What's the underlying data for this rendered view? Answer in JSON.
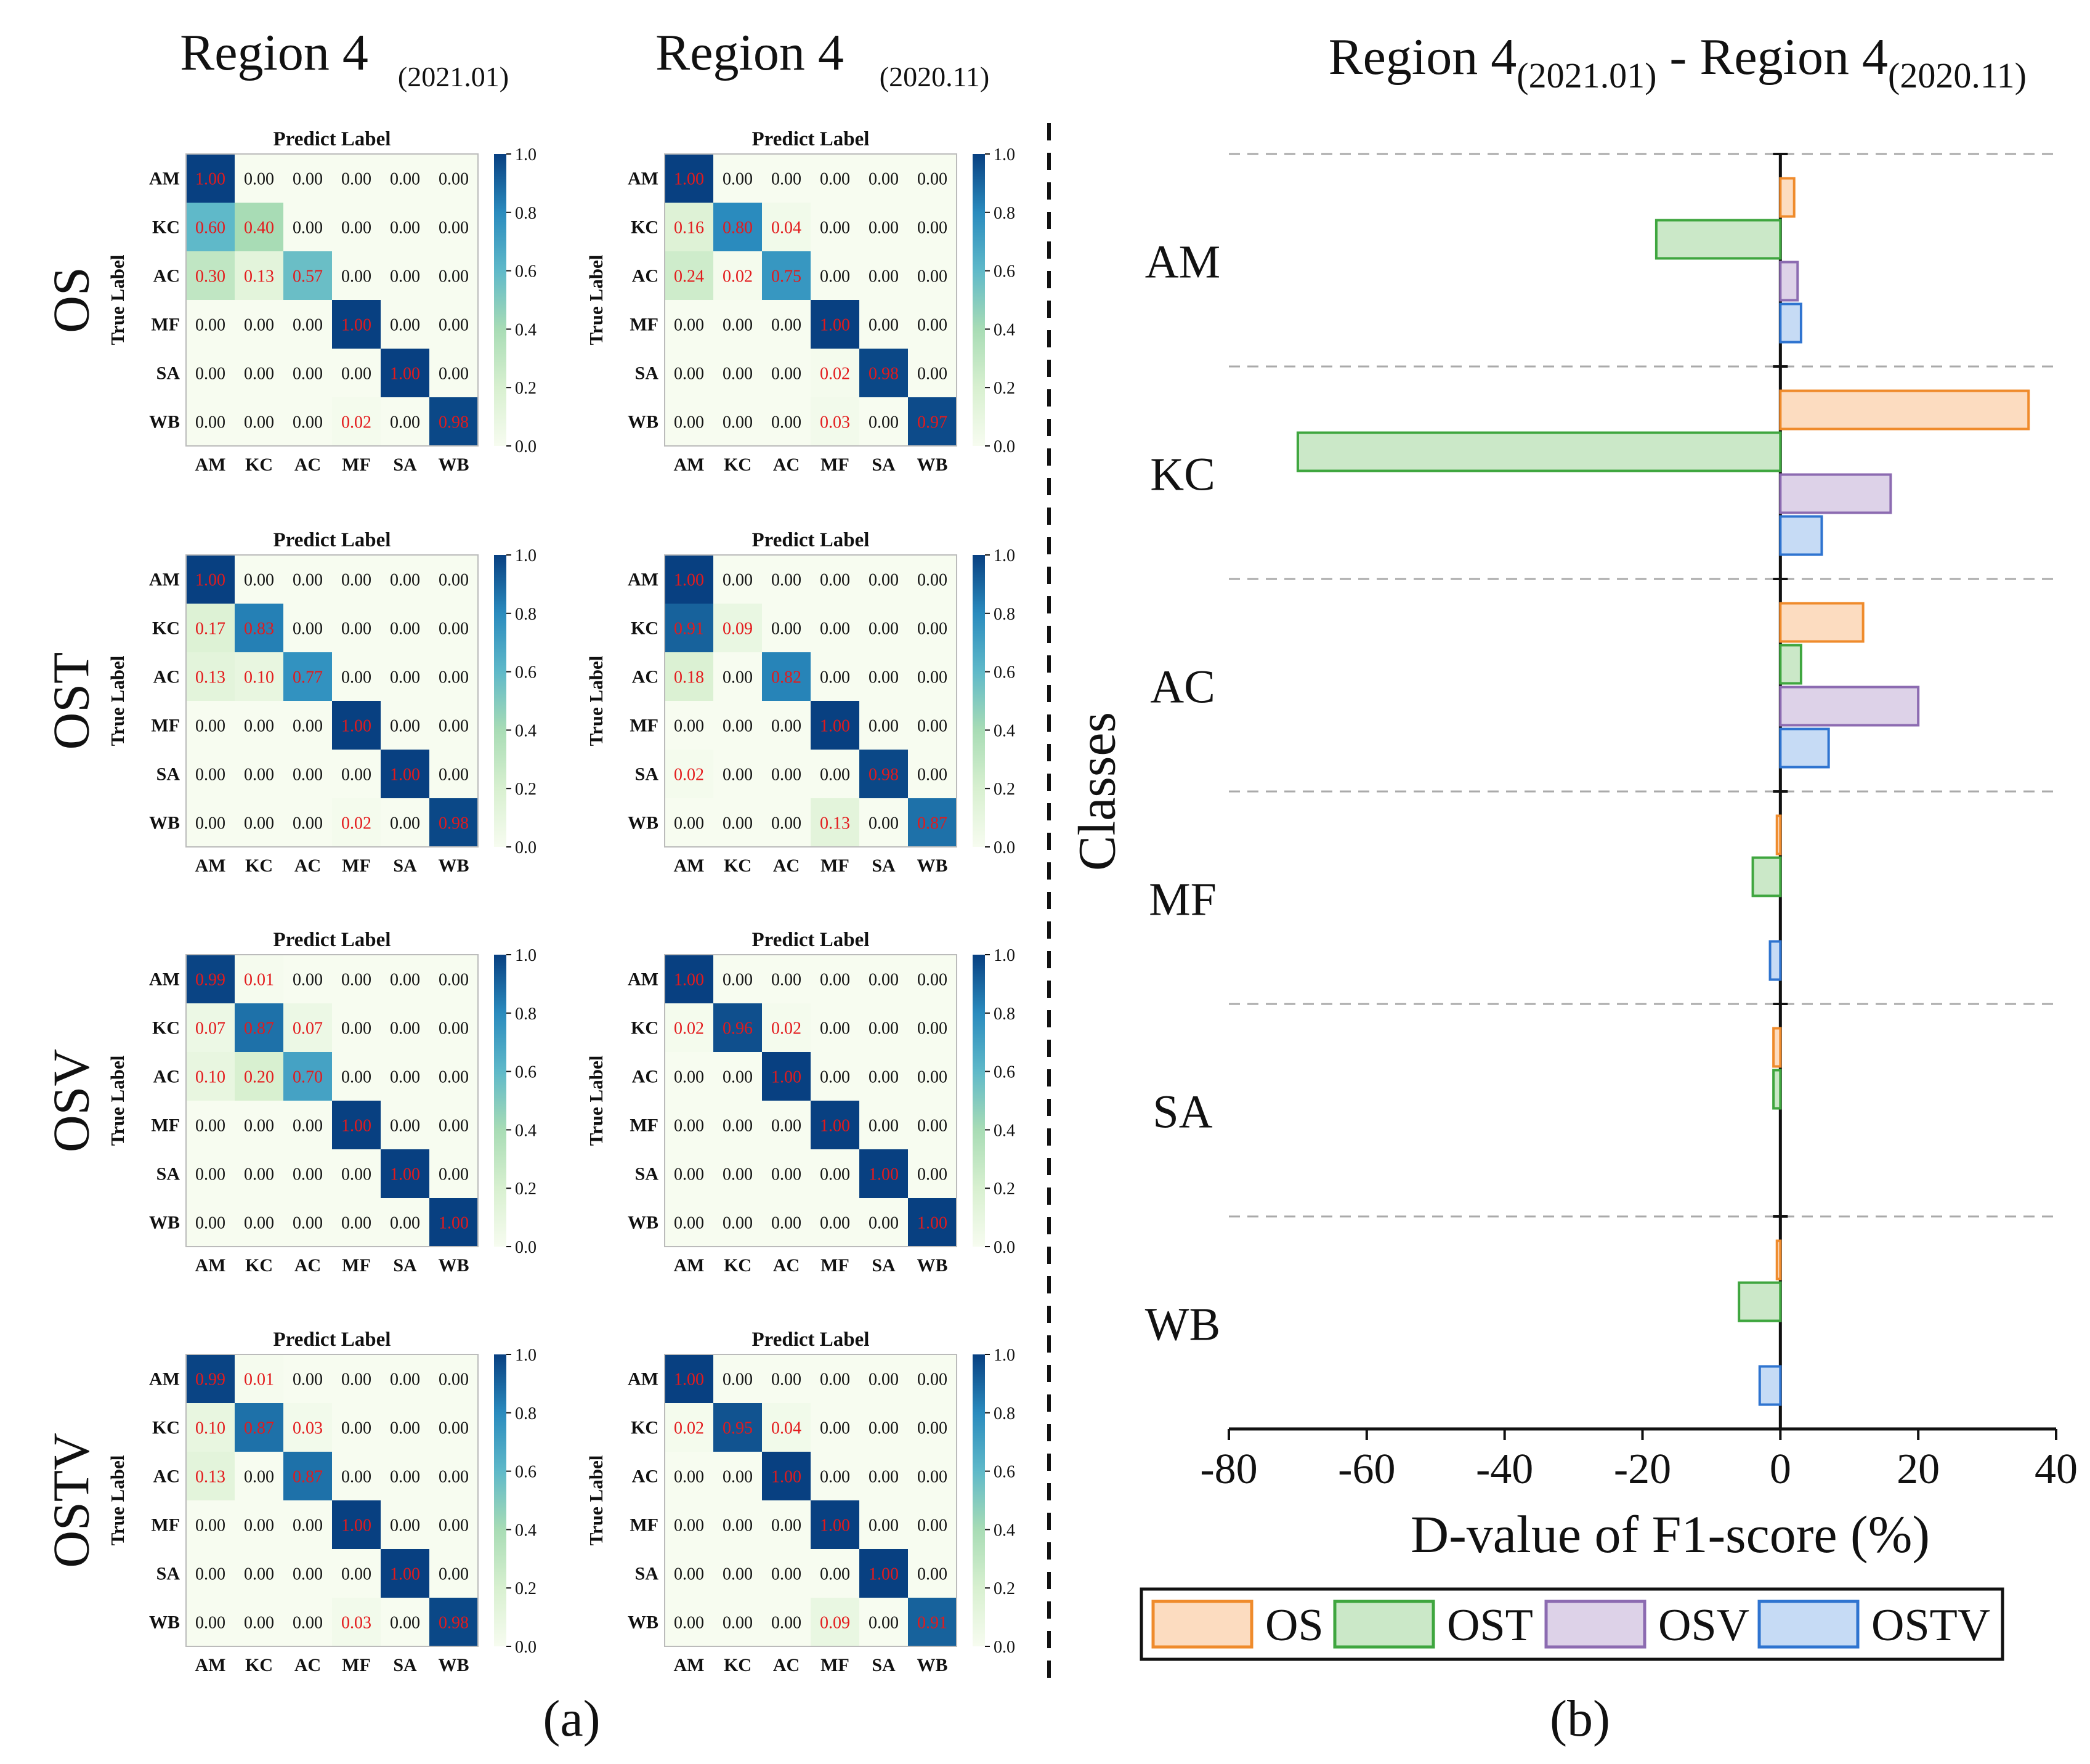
{
  "labels": {
    "panel_a": "(a)",
    "panel_b": "(b)",
    "col_left_main": "Region 4",
    "col_left_sub": "(2021.01)",
    "col_right_main": "Region 4",
    "col_right_sub": "(2020.11)",
    "title_b_part1": "Region 4",
    "title_b_sub1": "(2021.01)",
    "title_b_dash": " - Region 4",
    "title_b_sub2": "(2020.11)"
  },
  "colors": {
    "OS": {
      "fill": "#fcdcc0",
      "edge": "#ef8b2c"
    },
    "OST": {
      "fill": "#cbe8c8",
      "edge": "#3fa63f"
    },
    "OSV": {
      "fill": "#ddd2e8",
      "edge": "#8c6bb1"
    },
    "OSTV": {
      "fill": "#c6dbf5",
      "edge": "#2f74d0"
    },
    "diag_text": "#e31a1c",
    "offdiag_text": "#111111"
  },
  "chart_data": [
    {
      "type": "heatmap",
      "group": "confusion-matrices",
      "xlabel": "Predict Label",
      "ylabel": "True Label",
      "classes": [
        "AM",
        "KC",
        "AC",
        "MF",
        "SA",
        "WB"
      ],
      "colorbar_ticks": [
        "0.0",
        "0.2",
        "0.4",
        "0.6",
        "0.8",
        "1.0"
      ],
      "vmin": 0,
      "vmax": 1,
      "rows": [
        {
          "model": "OS",
          "matrices": [
            {
              "region": "Region 4 (2021.01)",
              "values": [
                [
                  1.0,
                  0.0,
                  0.0,
                  0.0,
                  0.0,
                  0.0
                ],
                [
                  0.6,
                  0.4,
                  0.0,
                  0.0,
                  0.0,
                  0.0
                ],
                [
                  0.3,
                  0.13,
                  0.57,
                  0.0,
                  0.0,
                  0.0
                ],
                [
                  0.0,
                  0.0,
                  0.0,
                  1.0,
                  0.0,
                  0.0
                ],
                [
                  0.0,
                  0.0,
                  0.0,
                  0.0,
                  1.0,
                  0.0
                ],
                [
                  0.0,
                  0.0,
                  0.0,
                  0.02,
                  0.0,
                  0.98
                ]
              ]
            },
            {
              "region": "Region 4 (2020.11)",
              "values": [
                [
                  1.0,
                  0.0,
                  0.0,
                  0.0,
                  0.0,
                  0.0
                ],
                [
                  0.16,
                  0.8,
                  0.04,
                  0.0,
                  0.0,
                  0.0
                ],
                [
                  0.24,
                  0.02,
                  0.75,
                  0.0,
                  0.0,
                  0.0
                ],
                [
                  0.0,
                  0.0,
                  0.0,
                  1.0,
                  0.0,
                  0.0
                ],
                [
                  0.0,
                  0.0,
                  0.0,
                  0.02,
                  0.98,
                  0.0
                ],
                [
                  0.0,
                  0.0,
                  0.0,
                  0.03,
                  0.0,
                  0.97
                ]
              ]
            }
          ]
        },
        {
          "model": "OST",
          "matrices": [
            {
              "region": "Region 4 (2021.01)",
              "values": [
                [
                  1.0,
                  0.0,
                  0.0,
                  0.0,
                  0.0,
                  0.0
                ],
                [
                  0.17,
                  0.83,
                  0.0,
                  0.0,
                  0.0,
                  0.0
                ],
                [
                  0.13,
                  0.1,
                  0.77,
                  0.0,
                  0.0,
                  0.0
                ],
                [
                  0.0,
                  0.0,
                  0.0,
                  1.0,
                  0.0,
                  0.0
                ],
                [
                  0.0,
                  0.0,
                  0.0,
                  0.0,
                  1.0,
                  0.0
                ],
                [
                  0.0,
                  0.0,
                  0.0,
                  0.02,
                  0.0,
                  0.98
                ]
              ]
            },
            {
              "region": "Region 4 (2020.11)",
              "values": [
                [
                  1.0,
                  0.0,
                  0.0,
                  0.0,
                  0.0,
                  0.0
                ],
                [
                  0.91,
                  0.09,
                  0.0,
                  0.0,
                  0.0,
                  0.0
                ],
                [
                  0.18,
                  0.0,
                  0.82,
                  0.0,
                  0.0,
                  0.0
                ],
                [
                  0.0,
                  0.0,
                  0.0,
                  1.0,
                  0.0,
                  0.0
                ],
                [
                  0.02,
                  0.0,
                  0.0,
                  0.0,
                  0.98,
                  0.0
                ],
                [
                  0.0,
                  0.0,
                  0.0,
                  0.13,
                  0.0,
                  0.87
                ]
              ]
            }
          ]
        },
        {
          "model": "OSV",
          "matrices": [
            {
              "region": "Region 4 (2021.01)",
              "values": [
                [
                  0.99,
                  0.01,
                  0.0,
                  0.0,
                  0.0,
                  0.0
                ],
                [
                  0.07,
                  0.87,
                  0.07,
                  0.0,
                  0.0,
                  0.0
                ],
                [
                  0.1,
                  0.2,
                  0.7,
                  0.0,
                  0.0,
                  0.0
                ],
                [
                  0.0,
                  0.0,
                  0.0,
                  1.0,
                  0.0,
                  0.0
                ],
                [
                  0.0,
                  0.0,
                  0.0,
                  0.0,
                  1.0,
                  0.0
                ],
                [
                  0.0,
                  0.0,
                  0.0,
                  0.0,
                  0.0,
                  1.0
                ]
              ]
            },
            {
              "region": "Region 4 (2020.11)",
              "values": [
                [
                  1.0,
                  0.0,
                  0.0,
                  0.0,
                  0.0,
                  0.0
                ],
                [
                  0.02,
                  0.96,
                  0.02,
                  0.0,
                  0.0,
                  0.0
                ],
                [
                  0.0,
                  0.0,
                  1.0,
                  0.0,
                  0.0,
                  0.0
                ],
                [
                  0.0,
                  0.0,
                  0.0,
                  1.0,
                  0.0,
                  0.0
                ],
                [
                  0.0,
                  0.0,
                  0.0,
                  0.0,
                  1.0,
                  0.0
                ],
                [
                  0.0,
                  0.0,
                  0.0,
                  0.0,
                  0.0,
                  1.0
                ]
              ]
            }
          ]
        },
        {
          "model": "OSTV",
          "matrices": [
            {
              "region": "Region 4 (2021.01)",
              "values": [
                [
                  0.99,
                  0.01,
                  0.0,
                  0.0,
                  0.0,
                  0.0
                ],
                [
                  0.1,
                  0.87,
                  0.03,
                  0.0,
                  0.0,
                  0.0
                ],
                [
                  0.13,
                  0.0,
                  0.87,
                  0.0,
                  0.0,
                  0.0
                ],
                [
                  0.0,
                  0.0,
                  0.0,
                  1.0,
                  0.0,
                  0.0
                ],
                [
                  0.0,
                  0.0,
                  0.0,
                  0.0,
                  1.0,
                  0.0
                ],
                [
                  0.0,
                  0.0,
                  0.0,
                  0.03,
                  0.0,
                  0.98
                ]
              ]
            },
            {
              "region": "Region 4 (2020.11)",
              "values": [
                [
                  1.0,
                  0.0,
                  0.0,
                  0.0,
                  0.0,
                  0.0
                ],
                [
                  0.02,
                  0.95,
                  0.04,
                  0.0,
                  0.0,
                  0.0
                ],
                [
                  0.0,
                  0.0,
                  1.0,
                  0.0,
                  0.0,
                  0.0
                ],
                [
                  0.0,
                  0.0,
                  0.0,
                  1.0,
                  0.0,
                  0.0
                ],
                [
                  0.0,
                  0.0,
                  0.0,
                  0.0,
                  1.0,
                  0.0
                ],
                [
                  0.0,
                  0.0,
                  0.0,
                  0.09,
                  0.0,
                  0.91
                ]
              ]
            }
          ]
        }
      ]
    },
    {
      "type": "bar",
      "orientation": "horizontal",
      "title": "Region 4(2021.01) - Region 4(2020.11)",
      "xlabel": "D-value of F1-score (%)",
      "ylabel": "Classes",
      "categories": [
        "AM",
        "KC",
        "AC",
        "MF",
        "SA",
        "WB"
      ],
      "xlim": [
        -80,
        40
      ],
      "xticks": [
        -80,
        -60,
        -40,
        -20,
        0,
        20,
        40
      ],
      "legend": "bottom",
      "series": [
        {
          "name": "OS",
          "values": [
            2,
            36,
            12,
            -0.5,
            -1,
            -0.5
          ]
        },
        {
          "name": "OST",
          "values": [
            -18,
            -70,
            3,
            -4,
            -1,
            -6
          ]
        },
        {
          "name": "OSV",
          "values": [
            2.5,
            16,
            20,
            0,
            0,
            0
          ]
        },
        {
          "name": "OSTV",
          "values": [
            3,
            6,
            7,
            -1.5,
            0,
            -3
          ]
        }
      ]
    }
  ]
}
